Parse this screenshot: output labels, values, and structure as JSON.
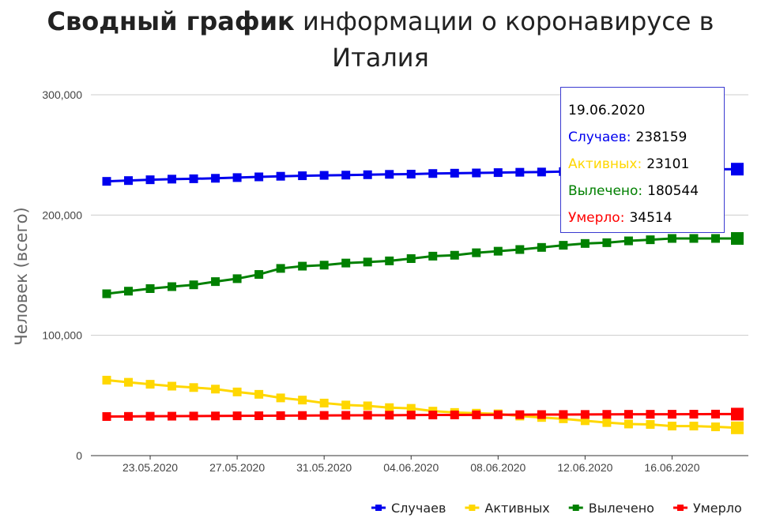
{
  "title": {
    "bold": "Сводный график",
    "rest": " информации о коронавирусе в Италия"
  },
  "chart_data": {
    "type": "line",
    "ylabel": "Человек (всего)",
    "ylim": [
      0,
      300000
    ],
    "yticks": [
      "0",
      "100,000",
      "200,000",
      "300,000"
    ],
    "xticks": [
      "23.05.2020",
      "27.05.2020",
      "31.05.2020",
      "04.06.2020",
      "08.06.2020",
      "12.06.2020",
      "16.06.2020"
    ],
    "grid": true,
    "legend_position": "bottom-right",
    "x": [
      "21.05.2020",
      "22.05.2020",
      "23.05.2020",
      "24.05.2020",
      "25.05.2020",
      "26.05.2020",
      "27.05.2020",
      "28.05.2020",
      "29.05.2020",
      "30.05.2020",
      "31.05.2020",
      "01.06.2020",
      "02.06.2020",
      "03.06.2020",
      "04.06.2020",
      "05.06.2020",
      "06.06.2020",
      "07.06.2020",
      "08.06.2020",
      "09.06.2020",
      "10.06.2020",
      "11.06.2020",
      "12.06.2020",
      "13.06.2020",
      "14.06.2020",
      "15.06.2020",
      "16.06.2020",
      "17.06.2020",
      "18.06.2020",
      "19.06.2020"
    ],
    "series": [
      {
        "name": "Случаев",
        "color": "#0000ee",
        "values": [
          228006,
          228658,
          229327,
          229858,
          230158,
          230555,
          231139,
          231732,
          232248,
          232664,
          232997,
          233197,
          233515,
          233836,
          234013,
          234531,
          234801,
          234998,
          235278,
          235561,
          235763,
          236142,
          236305,
          236651,
          236989,
          237290,
          237500,
          237828,
          238011,
          238159
        ]
      },
      {
        "name": "Активных",
        "color": "#ffd700",
        "values": [
          62752,
          60960,
          59322,
          57752,
          56594,
          55300,
          52942,
          50966,
          47986,
          46175,
          43691,
          42075,
          41367,
          39893,
          39297,
          36976,
          35877,
          35262,
          34730,
          32872,
          31710,
          30637,
          28997,
          27485,
          26274,
          25909,
          24569,
          24569,
          23925,
          23101
        ]
      },
      {
        "name": "Вылечено",
        "color": "#008000",
        "values": [
          134560,
          136720,
          138840,
          140479,
          141981,
          144658,
          147101,
          150604,
          155633,
          157507,
          158355,
          160092,
          160938,
          161895,
          163781,
          165837,
          166584,
          168646,
          169939,
          171338,
          173085,
          174865,
          176370,
          177010,
          178526,
          179455,
          180544,
          180544,
          180544,
          180544
        ]
      },
      {
        "name": "Умерло",
        "color": "#ff0000",
        "values": [
          32486,
          32616,
          32735,
          32785,
          32877,
          32955,
          33072,
          33142,
          33229,
          33340,
          33415,
          33475,
          33530,
          33601,
          33689,
          33774,
          33846,
          33899,
          33964,
          34043,
          34114,
          34167,
          34223,
          34301,
          34345,
          34371,
          34405,
          34448,
          34514,
          34514
        ]
      }
    ]
  },
  "tooltip": {
    "date": "19.06.2020",
    "rows": [
      {
        "label": "Случаев:",
        "value": "238159",
        "color": "#0000ee"
      },
      {
        "label": "Активных:",
        "value": "23101",
        "color": "#ffd700"
      },
      {
        "label": "Вылечено:",
        "value": "180544",
        "color": "#008000"
      },
      {
        "label": "Умерло:",
        "value": "34514",
        "color": "#ff0000"
      }
    ]
  }
}
